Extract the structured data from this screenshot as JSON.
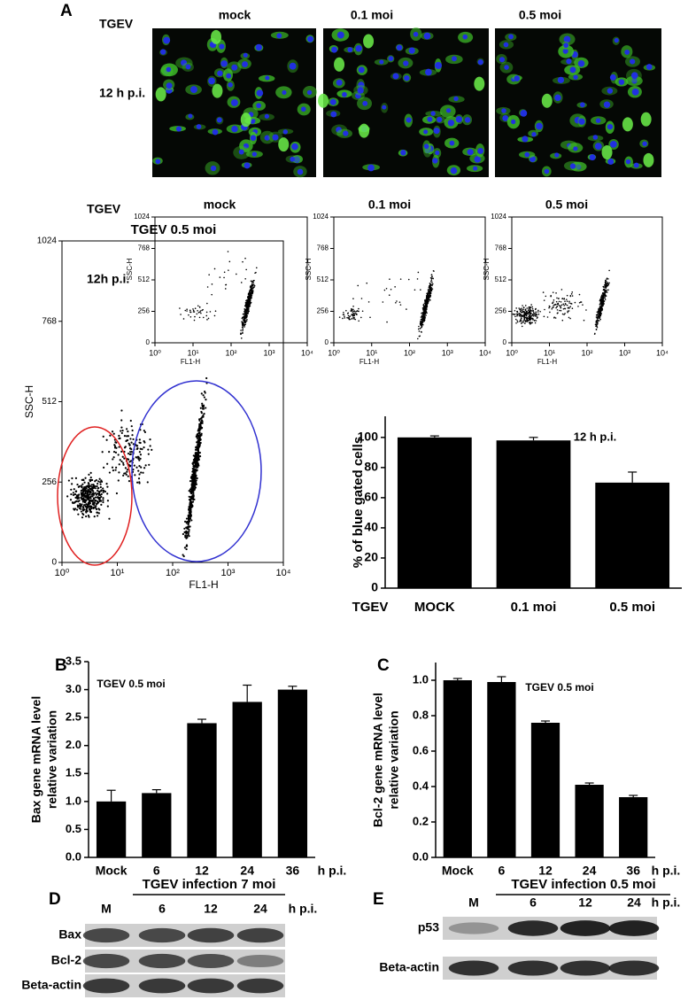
{
  "panel_a": {
    "label": "A",
    "micro": {
      "row_label": "TGEV",
      "time_label": "12 h p.i.",
      "columns": [
        "mock",
        "0.1 moi",
        "0.5 moi"
      ]
    },
    "flow": {
      "row_label": "TGEV",
      "time_label": "12h p.i.",
      "columns": [
        "mock",
        "0.1 moi",
        "0.5 moi"
      ],
      "x_label": "FL1-H",
      "y_label": "SSC-H",
      "log_x": true,
      "xlim": [
        1,
        10000
      ],
      "xticks": [
        {
          "value": 1,
          "label": "10⁰"
        },
        {
          "value": 10,
          "label": "10¹"
        },
        {
          "value": 100,
          "label": "10²"
        },
        {
          "value": 1000,
          "label": "10³"
        },
        {
          "value": 10000,
          "label": "10⁴"
        }
      ],
      "ylim": [
        0,
        1024
      ],
      "yticks": [
        0,
        256,
        512,
        768,
        1024
      ]
    },
    "gated": {
      "title": "TGEV 0.5 moi",
      "x_label": "FL1-H",
      "y_label": "SSC-H"
    }
  },
  "chart_data": [
    {
      "type": "bar",
      "y_label": [
        "% of blue gated cells"
      ],
      "annotation": "12 h p.i.",
      "x_prefix": "TGEV",
      "categories": [
        "MOCK",
        "0.1 moi",
        "0.5 moi"
      ],
      "values": [
        100,
        98,
        70
      ],
      "errors": [
        1,
        2,
        7
      ],
      "color": "#000000",
      "ylim": [
        0,
        114
      ],
      "yticks": [
        0,
        20,
        40,
        60,
        80,
        100
      ]
    },
    {
      "type": "bar",
      "label": "B",
      "y_label": [
        "Bax gene mRNA level",
        "relative variation"
      ],
      "annotation": "TGEV 0.5 moi",
      "x_unit": "h p.i.",
      "categories": [
        "Mock",
        "6",
        "12",
        "24",
        "36"
      ],
      "values": [
        1.0,
        1.15,
        2.4,
        2.78,
        3.0
      ],
      "errors": [
        0.2,
        0.06,
        0.07,
        0.3,
        0.06
      ],
      "color": "#000000",
      "ylim": [
        0,
        3.5
      ],
      "yticks": [
        {
          "value": 0,
          "label": "0.0"
        },
        0.5,
        {
          "value": 1,
          "label": "1.0"
        },
        1.5,
        {
          "value": 2,
          "label": "2.0"
        },
        2.5,
        {
          "value": 3,
          "label": "3.0"
        },
        3.5
      ]
    },
    {
      "type": "bar",
      "label": "C",
      "y_label": [
        "Bcl-2 gene mRNA level",
        "relative variation"
      ],
      "annotation": "TGEV 0.5 moi",
      "x_unit": "h p.i.",
      "categories": [
        "Mock",
        "6",
        "12",
        "24",
        "36"
      ],
      "values": [
        1.0,
        0.99,
        0.76,
        0.41,
        0.34
      ],
      "errors": [
        0.01,
        0.03,
        0.01,
        0.01,
        0.01
      ],
      "color": "#000000",
      "ylim": [
        0,
        1.1
      ],
      "yticks": [
        {
          "value": 0,
          "label": "0.0"
        },
        0.2,
        0.4,
        0.6,
        0.8,
        {
          "value": 1,
          "label": "1.0"
        }
      ]
    }
  ],
  "panel_d": {
    "label": "D",
    "header": "TGEV infection 7 moi",
    "lanes": [
      "M",
      "6",
      "12",
      "24"
    ],
    "unit": "h p.i.",
    "rows": [
      "Bax",
      "Bcl-2",
      "Beta-actin"
    ]
  },
  "panel_e": {
    "label": "E",
    "header": "TGEV infection 0.5 moi",
    "lanes": [
      "M",
      "6",
      "12",
      "24"
    ],
    "unit": "h p.i.",
    "rows": [
      "p53",
      "Beta-actin"
    ]
  }
}
